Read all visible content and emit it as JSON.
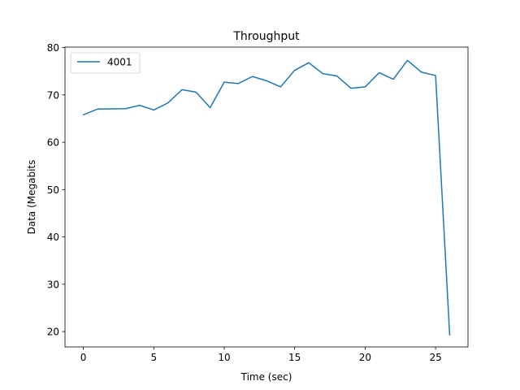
{
  "chart_data": {
    "type": "line",
    "title": "Throughput",
    "xlabel": "Time (sec)",
    "ylabel": "Data (Megabits",
    "xlim": [
      -1.3,
      27.3
    ],
    "ylim": [
      16.75,
      80.1
    ],
    "xticks": [
      0,
      5,
      10,
      15,
      20,
      25
    ],
    "yticks": [
      20,
      30,
      40,
      50,
      60,
      70,
      80
    ],
    "grid": false,
    "legend_position": "upper-left",
    "series": [
      {
        "name": "4001",
        "color": "#1f77b4",
        "x": [
          0,
          1,
          2,
          3,
          4,
          5,
          6,
          7,
          8,
          9,
          10,
          11,
          12,
          13,
          14,
          15,
          16,
          17,
          18,
          19,
          20,
          21,
          22,
          23,
          24,
          25,
          26
        ],
        "y": [
          65.8,
          67.0,
          67.05,
          67.1,
          67.8,
          66.8,
          68.3,
          71.1,
          70.6,
          67.3,
          72.7,
          72.4,
          73.9,
          73.0,
          71.7,
          75.2,
          76.8,
          74.5,
          74.0,
          71.4,
          71.7,
          74.7,
          73.3,
          77.3,
          74.8,
          74.1,
          19.3
        ]
      }
    ]
  }
}
